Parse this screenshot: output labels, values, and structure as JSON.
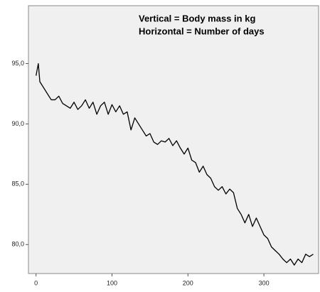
{
  "chart_data": {
    "type": "line",
    "annotations": [
      "Vertical = Body mass in kg",
      "Horizontal = Number of days"
    ],
    "x": [
      0,
      3,
      5,
      10,
      15,
      20,
      25,
      30,
      35,
      40,
      45,
      50,
      55,
      60,
      65,
      70,
      75,
      80,
      85,
      90,
      95,
      100,
      105,
      110,
      115,
      120,
      125,
      130,
      135,
      140,
      145,
      150,
      155,
      160,
      165,
      170,
      175,
      180,
      185,
      190,
      195,
      200,
      205,
      210,
      215,
      220,
      225,
      230,
      235,
      240,
      245,
      250,
      255,
      260,
      265,
      270,
      275,
      280,
      285,
      290,
      295,
      300,
      305,
      310,
      315,
      320,
      325,
      330,
      335,
      340,
      345,
      350,
      355,
      360,
      365
    ],
    "series": [
      {
        "color": "#000000",
        "values": [
          94,
          95,
          93.5,
          93,
          92.5,
          92,
          92,
          92.3,
          91.7,
          91.5,
          91.3,
          91.8,
          91.2,
          91.5,
          92,
          91.3,
          91.8,
          90.8,
          91.5,
          91.8,
          90.8,
          91.6,
          91,
          91.5,
          90.8,
          91,
          89.5,
          90.5,
          90,
          89.5,
          89,
          89.2,
          88.5,
          88.3,
          88.6,
          88.5,
          88.8,
          88.2,
          88.6,
          88,
          87.5,
          88,
          87,
          86.8,
          86,
          86.5,
          85.8,
          85.5,
          84.8,
          84.5,
          84.8,
          84.2,
          84.6,
          84.3,
          83,
          82.5,
          81.8,
          82.5,
          81.5,
          82.2,
          81.5,
          80.8,
          80.5,
          79.8,
          79.5,
          79.2,
          78.8,
          78.5,
          78.8,
          78.3,
          78.8,
          78.5,
          79.2,
          79,
          79.2
        ]
      }
    ],
    "xlim": [
      -10,
      372
    ],
    "ylim": [
      77.6,
      99.8
    ],
    "xticks": [
      0,
      100,
      200,
      300
    ],
    "yticks": [
      {
        "value": 80,
        "label": "80,0"
      },
      {
        "value": 85,
        "label": "85,0"
      },
      {
        "value": 90,
        "label": "90,0"
      },
      {
        "value": 95,
        "label": "95,0"
      }
    ],
    "grid": false
  }
}
